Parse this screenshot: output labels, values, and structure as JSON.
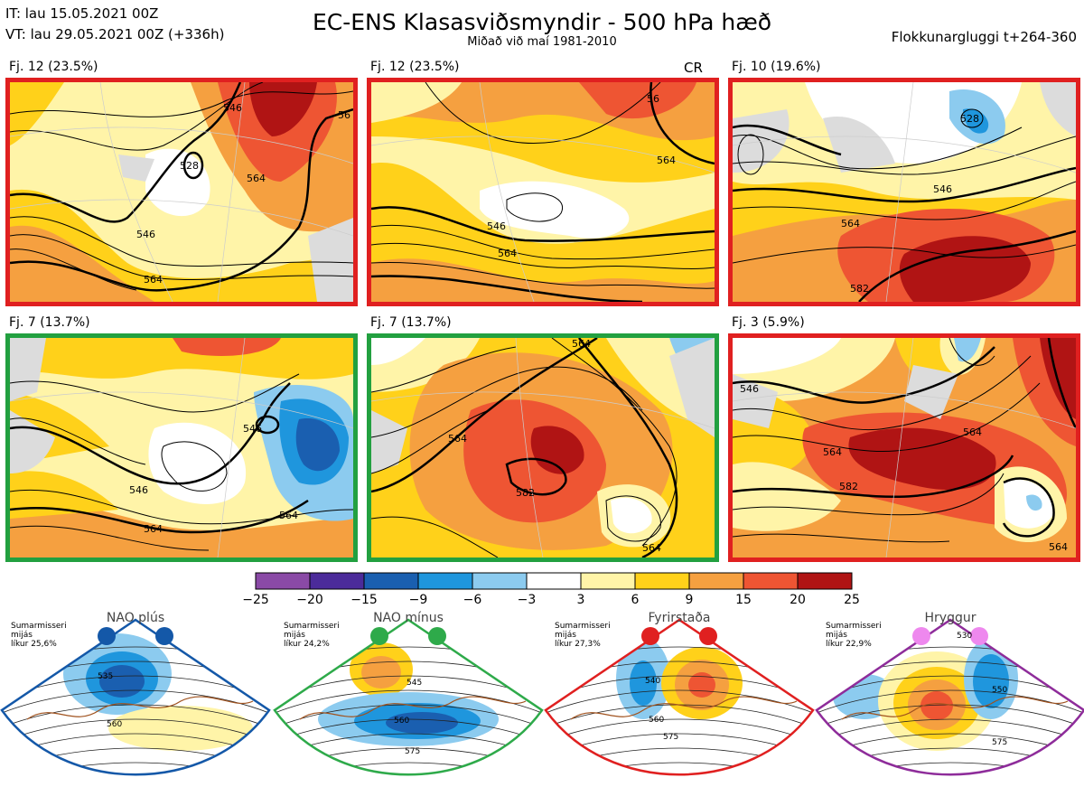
{
  "header": {
    "initial_time": "IT: lau 15.05.2021 00Z",
    "valid_time": "VT: lau 29.05.2021 00Z  (+336h)",
    "title": "EC-ENS Klasasviðsmyndir - 500 hPa hæð",
    "subtitle": "Miðað við maí 1981-2010",
    "window": "Flokkunargluggi t+264-360"
  },
  "panels": [
    {
      "label": "Fj. 12 (23.5%)",
      "frame_color": "#e02020",
      "contours": [
        "546",
        "528",
        "564",
        "546",
        "564",
        "56"
      ]
    },
    {
      "label": "Fj. 12 (23.5%)",
      "frame_color": "#e02020",
      "marker": "CR",
      "contours": [
        "56",
        "546",
        "564",
        "564"
      ]
    },
    {
      "label": "Fj. 10 (19.6%)",
      "frame_color": "#e02020",
      "contours": [
        "528",
        "546",
        "564",
        "582"
      ]
    },
    {
      "label": "Fj. 7 (13.7%)",
      "frame_color": "#22a040",
      "contours": [
        "546",
        "546",
        "564",
        "564"
      ]
    },
    {
      "label": "Fj. 7 (13.7%)",
      "frame_color": "#22a040",
      "contours": [
        "564",
        "564",
        "582",
        "564"
      ]
    },
    {
      "label": "Fj. 3 (5.9%)",
      "frame_color": "#e02020",
      "contours": [
        "546",
        "564",
        "582",
        "564",
        "564"
      ]
    }
  ],
  "colorbar": {
    "ticks": [
      "−25",
      "−20",
      "−15",
      "−9",
      "−6",
      "−3",
      "3",
      "6",
      "9",
      "15",
      "20",
      "25"
    ],
    "colors": [
      "#8a4aa6",
      "#4b2b9a",
      "#1a5fb0",
      "#1f96dd",
      "#8ccbef",
      "#ffffff",
      "#fff4a8",
      "#ffd11a",
      "#f5a040",
      "#ee5533",
      "#b01414"
    ]
  },
  "regimes": [
    {
      "name": "NAO plús",
      "season": "Sumarmisseri",
      "freq_label": "mijás",
      "likelihood": "líkur 25,6%",
      "color": "#1458a8",
      "dot_color": "#1458a8",
      "contours": [
        "535",
        "560"
      ]
    },
    {
      "name": "NAO mínus",
      "season": "Sumarmisseri",
      "freq_label": "mijás",
      "likelihood": "líkur 24,2%",
      "color": "#2eaa4a",
      "dot_color": "#2eaa4a",
      "contours": [
        "545",
        "560",
        "575"
      ]
    },
    {
      "name": "Fyrirstaða",
      "season": "Sumarmisseri",
      "freq_label": "mijás",
      "likelihood": "líkur 27,3%",
      "color": "#e02020",
      "dot_color": "#e02020",
      "contours": [
        "540",
        "560",
        "575"
      ]
    },
    {
      "name": "Hryggur",
      "season": "Sumarmisseri",
      "freq_label": "mijás",
      "likelihood": "líkur 22,9%",
      "color": "#8e2c9a",
      "dot_color": "#ee88ee",
      "contours": [
        "530",
        "550",
        "575"
      ]
    }
  ]
}
